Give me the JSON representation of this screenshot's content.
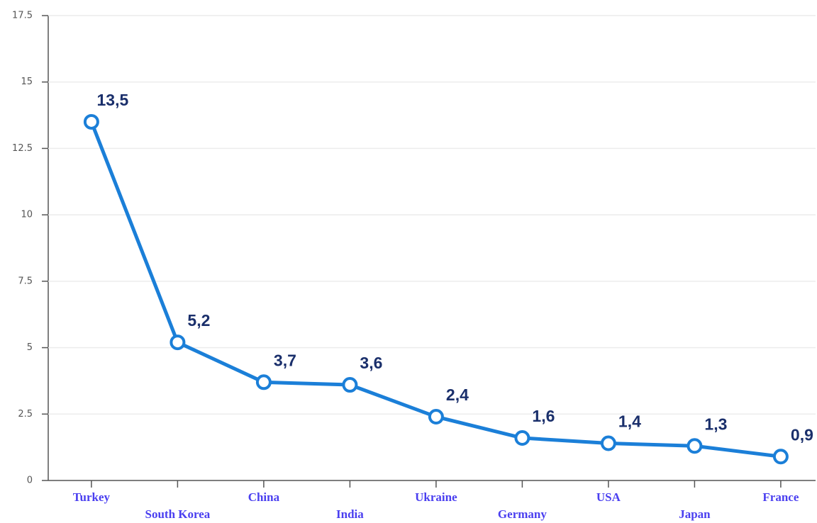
{
  "chart_data": {
    "type": "line",
    "categories": [
      "Turkey",
      "South Korea",
      "China",
      "India",
      "Ukraine",
      "Germany",
      "USA",
      "Japan",
      "France"
    ],
    "series": [
      {
        "color": "#1b7fd8",
        "values": [
          13.5,
          5.2,
          3.7,
          3.6,
          2.4,
          1.6,
          1.4,
          1.3,
          0.9
        ],
        "value_labels": [
          "13,5",
          "5,2",
          "3,7",
          "3,6",
          "2,4",
          "1,6",
          "1,4",
          "1,3",
          "0,9"
        ]
      }
    ],
    "ylim": [
      0,
      17.5
    ],
    "yticks": [
      0,
      2.5,
      5,
      7.5,
      10,
      12.5,
      15,
      17.5
    ],
    "grid": true
  }
}
